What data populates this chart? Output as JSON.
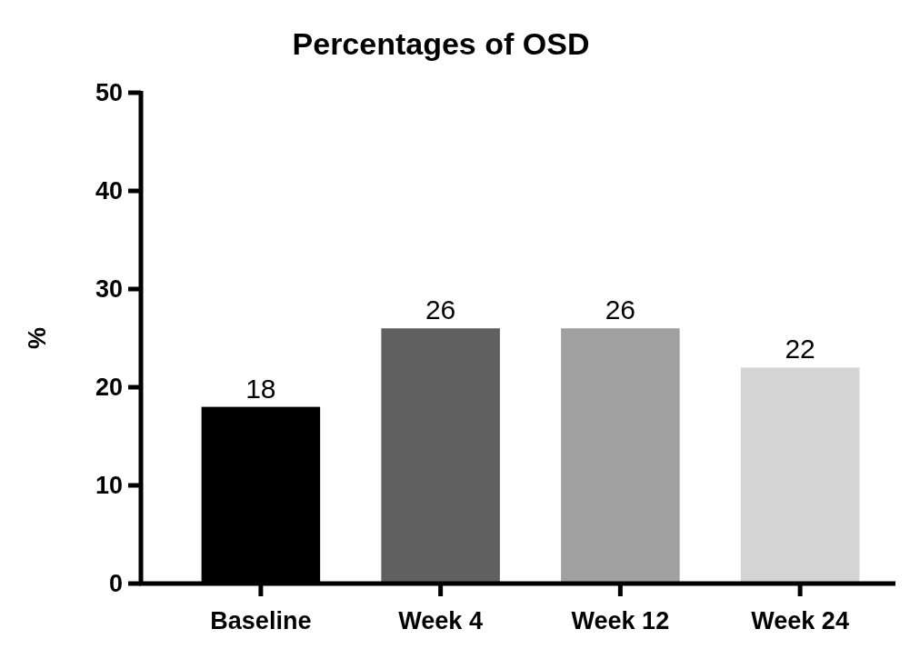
{
  "chart_data": {
    "type": "bar",
    "title": "Percentages of OSD",
    "ylabel": "%",
    "categories": [
      "Baseline",
      "Week 4",
      "Week 12",
      "Week 24"
    ],
    "values": [
      18,
      26,
      26,
      22
    ],
    "colors": [
      "#000000",
      "#606060",
      "#a0a0a0",
      "#d4d4d4"
    ],
    "ylim": [
      0,
      50
    ],
    "yticks": [
      0,
      10,
      20,
      30,
      40,
      50
    ],
    "data_labels": true
  }
}
